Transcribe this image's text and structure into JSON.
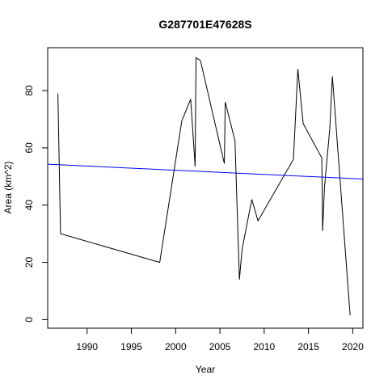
{
  "chart_data": {
    "type": "line",
    "title": "G287701E47628S",
    "xlabel": "Year",
    "ylabel": "Area (km^2)",
    "xlim": [
      1985.55,
      2021.15
    ],
    "ylim": [
      -3.0,
      95.0
    ],
    "x_ticks": [
      1990,
      1995,
      2000,
      2005,
      2010,
      2015,
      2020
    ],
    "y_ticks": [
      0,
      20,
      40,
      60,
      80
    ],
    "grid": false,
    "legend": "none",
    "series": [
      {
        "color": "#000000",
        "points": [
          [
            1986.7,
            79.0
          ],
          [
            1987.0,
            30.0
          ],
          [
            1998.2,
            20.0
          ],
          [
            2000.7,
            69.5
          ],
          [
            2001.7,
            77.0
          ],
          [
            2002.2,
            53.5
          ],
          [
            2002.3,
            91.5
          ],
          [
            2002.8,
            90.5
          ],
          [
            2005.5,
            54.5
          ],
          [
            2005.6,
            76.0
          ],
          [
            2006.7,
            62.5
          ],
          [
            2007.2,
            14.0
          ],
          [
            2007.5,
            24.5
          ],
          [
            2008.6,
            42.0
          ],
          [
            2009.3,
            34.5
          ],
          [
            2013.3,
            56.0
          ],
          [
            2013.8,
            87.5
          ],
          [
            2014.4,
            68.5
          ],
          [
            2016.5,
            56.5
          ],
          [
            2016.6,
            31.0
          ],
          [
            2016.8,
            46.0
          ],
          [
            2017.4,
            66.5
          ],
          [
            2017.7,
            85.0
          ],
          [
            2019.7,
            1.5
          ]
        ]
      },
      {
        "color": "#0000ff",
        "points": [
          [
            1985.55,
            54.3
          ],
          [
            2021.15,
            49.1
          ]
        ]
      }
    ]
  }
}
